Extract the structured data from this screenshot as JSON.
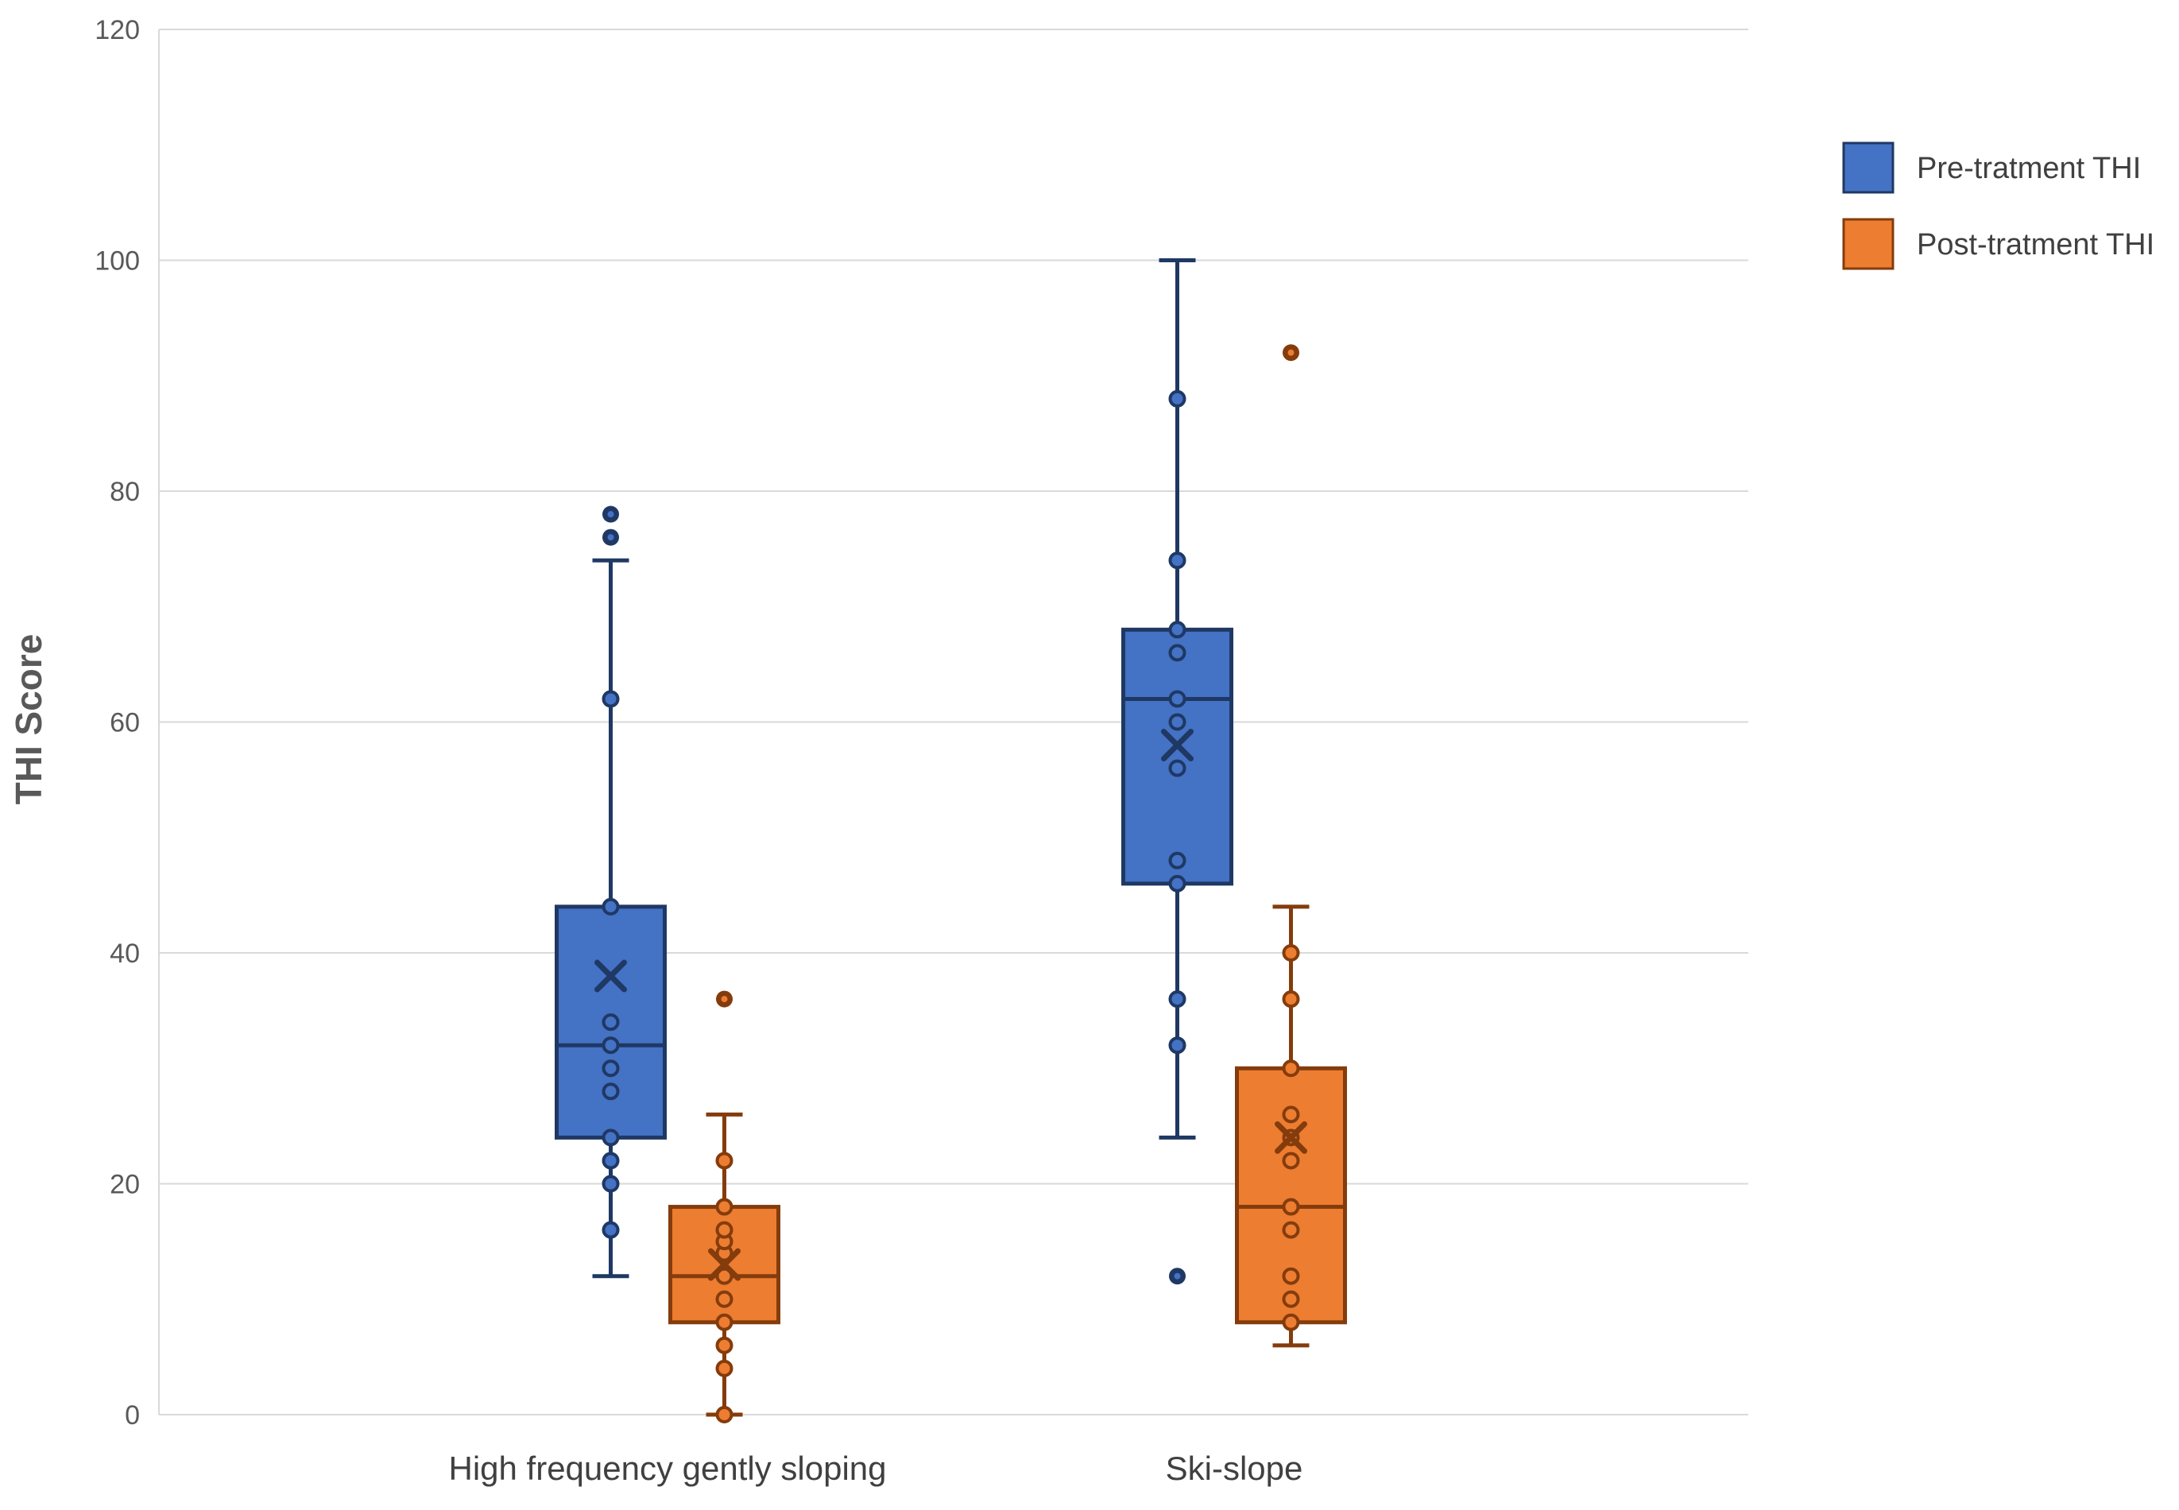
{
  "page": {
    "background": "#FFFFFF"
  },
  "chart_data": {
    "type": "boxplot",
    "title": "",
    "ylabel": "THI Score",
    "xlabel": "",
    "ylim": [
      0,
      120
    ],
    "yticks": [
      0,
      20,
      40,
      60,
      80,
      100,
      120
    ],
    "grid": true,
    "legend_position": "top-right",
    "categories": [
      "High frequency gently sloping",
      "Ski-slope"
    ],
    "colors": {
      "pre_fill": "#4472C4",
      "pre_edge": "#1F3864",
      "post_fill": "#ED7D31",
      "post_edge": "#843C0C",
      "gridline": "#D9D9D9",
      "tick_label": "#595959",
      "axis_title": "#595959",
      "category_label": "#404040",
      "legend_label": "#404040"
    },
    "series": [
      {
        "name": "Pre-tratment THI",
        "fill": "#4472C4",
        "edge": "#1F3864",
        "boxes": [
          {
            "category": "High frequency gently sloping",
            "whisker_low": 12,
            "q1": 24,
            "median": 32,
            "q3": 44,
            "whisker_high": 74,
            "mean": 38,
            "outliers": [
              76,
              78
            ],
            "points": [
              16,
              20,
              22,
              24,
              28,
              30,
              32,
              34,
              44,
              62
            ]
          },
          {
            "category": "Ski-slope",
            "whisker_low": 24,
            "q1": 46,
            "median": 62,
            "q3": 68,
            "whisker_high": 100,
            "mean": 58,
            "outliers": [
              12
            ],
            "points": [
              32,
              36,
              46,
              48,
              56,
              60,
              62,
              66,
              68,
              74,
              88
            ]
          }
        ]
      },
      {
        "name": "Post-tratment THI",
        "fill": "#ED7D31",
        "edge": "#843C0C",
        "boxes": [
          {
            "category": "High frequency gently sloping",
            "whisker_low": 0,
            "q1": 8,
            "median": 12,
            "q3": 18,
            "whisker_high": 26,
            "mean": 13,
            "outliers": [
              36
            ],
            "points": [
              0,
              4,
              6,
              8,
              10,
              12,
              14,
              15,
              16,
              18,
              22
            ]
          },
          {
            "category": "Ski-slope",
            "whisker_low": 6,
            "q1": 8,
            "median": 18,
            "q3": 30,
            "whisker_high": 44,
            "mean": 24,
            "outliers": [
              92
            ],
            "points": [
              8,
              10,
              12,
              16,
              18,
              22,
              24,
              26,
              30,
              36,
              40
            ]
          }
        ]
      }
    ]
  }
}
